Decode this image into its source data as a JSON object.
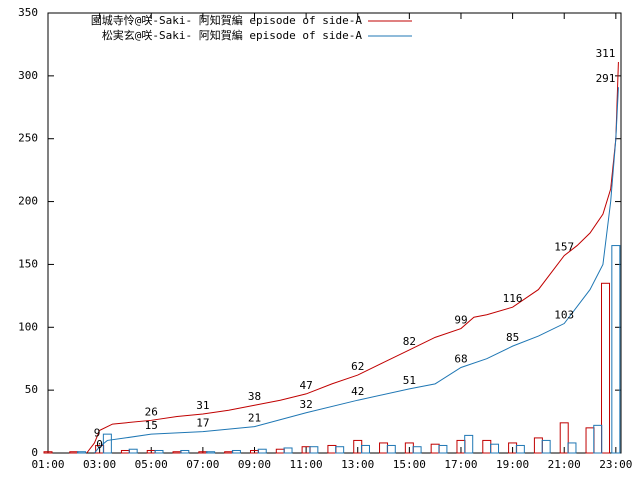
{
  "chart_data": {
    "type": "line",
    "xlim": [
      1,
      23.2
    ],
    "xticks": [
      {
        "value": 1,
        "label": "01:00"
      },
      {
        "value": 3,
        "label": "03:00"
      },
      {
        "value": 5,
        "label": "05:00"
      },
      {
        "value": 7,
        "label": "07:00"
      },
      {
        "value": 9,
        "label": "09:00"
      },
      {
        "value": 11,
        "label": "11:00"
      },
      {
        "value": 13,
        "label": "13:00"
      },
      {
        "value": 15,
        "label": "15:00"
      },
      {
        "value": 17,
        "label": "17:00"
      },
      {
        "value": 19,
        "label": "19:00"
      },
      {
        "value": 21,
        "label": "21:00"
      },
      {
        "value": 23,
        "label": "23:00"
      }
    ],
    "ylim": [
      0,
      350
    ],
    "yticks": [
      0,
      50,
      100,
      150,
      200,
      250,
      300,
      350
    ],
    "legend": "top-left",
    "series": [
      {
        "name": "園城寺怜@咲-Saki- 阿知賀編 episode of side-A",
        "color": "#c00000",
        "x": [
          2.5,
          2.8,
          3.0,
          3.5,
          4,
          5,
          6,
          7,
          8,
          9,
          10,
          11,
          12,
          13,
          14,
          15,
          16,
          17,
          17.5,
          18,
          19,
          20,
          21,
          21.5,
          22,
          22.5,
          22.8,
          23,
          23.1
        ],
        "values": [
          0,
          8,
          18,
          23,
          24,
          26,
          29,
          31,
          34,
          38,
          42,
          47,
          55,
          62,
          72,
          82,
          92,
          99,
          108,
          110,
          116,
          130,
          157,
          165,
          175,
          190,
          210,
          250,
          311
        ],
        "annotations": [
          {
            "x": 2.9,
            "y": 9,
            "label": "9"
          },
          {
            "x": 5,
            "y": 26,
            "label": "26"
          },
          {
            "x": 7,
            "y": 31,
            "label": "31"
          },
          {
            "x": 9,
            "y": 38,
            "label": "38"
          },
          {
            "x": 11,
            "y": 47,
            "label": "47"
          },
          {
            "x": 13,
            "y": 62,
            "label": "62"
          },
          {
            "x": 15,
            "y": 82,
            "label": "82"
          },
          {
            "x": 17,
            "y": 99,
            "label": "99"
          },
          {
            "x": 19,
            "y": 116,
            "label": "116"
          },
          {
            "x": 21,
            "y": 157,
            "label": "157"
          },
          {
            "x": 22.6,
            "y": 311,
            "label": "311"
          }
        ],
        "bar_x": [
          1,
          2,
          3,
          4,
          5,
          6,
          7,
          8,
          9,
          10,
          11,
          12,
          13,
          14,
          15,
          16,
          17,
          18,
          19,
          20,
          21,
          22,
          22.6
        ],
        "bars": [
          1,
          1,
          6,
          2,
          2,
          1,
          1,
          1,
          2,
          3,
          5,
          6,
          10,
          8,
          8,
          7,
          10,
          10,
          8,
          12,
          24,
          20,
          135
        ]
      },
      {
        "name": "松実玄@咲-Saki- 阿知賀編 episode of side-A",
        "color": "#1f77b4",
        "x": [
          2.8,
          3.0,
          3.3,
          4,
          5,
          7,
          9,
          11,
          13,
          15,
          16,
          17,
          18,
          19,
          20,
          21,
          22,
          22.5,
          22.8,
          23,
          23.1
        ],
        "values": [
          0,
          5,
          10,
          12,
          15,
          17,
          21,
          32,
          42,
          51,
          55,
          68,
          75,
          85,
          93,
          103,
          130,
          150,
          200,
          250,
          291
        ],
        "annotations": [
          {
            "x": 3,
            "y": 0,
            "label": "0"
          },
          {
            "x": 5,
            "y": 15,
            "label": "15"
          },
          {
            "x": 7,
            "y": 17,
            "label": "17"
          },
          {
            "x": 9,
            "y": 21,
            "label": "21"
          },
          {
            "x": 11,
            "y": 32,
            "label": "32"
          },
          {
            "x": 13,
            "y": 42,
            "label": "42"
          },
          {
            "x": 15,
            "y": 51,
            "label": "51"
          },
          {
            "x": 17,
            "y": 68,
            "label": "68"
          },
          {
            "x": 19,
            "y": 85,
            "label": "85"
          },
          {
            "x": 21,
            "y": 103,
            "label": "103"
          },
          {
            "x": 22.6,
            "y": 291,
            "label": "291"
          }
        ],
        "bar_x": [
          1.3,
          2.3,
          3.3,
          4.3,
          5.3,
          6.3,
          7.3,
          8.3,
          9.3,
          10.3,
          11.3,
          12.3,
          13.3,
          14.3,
          15.3,
          16.3,
          17.3,
          18.3,
          19.3,
          20.3,
          21.3,
          22.3,
          23
        ],
        "bars": [
          0,
          1,
          15,
          3,
          2,
          2,
          1,
          2,
          3,
          4,
          5,
          5,
          6,
          6,
          5,
          6,
          14,
          7,
          6,
          10,
          8,
          22,
          165
        ]
      }
    ]
  }
}
